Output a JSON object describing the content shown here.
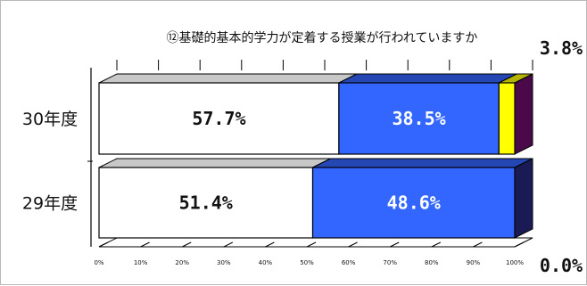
{
  "chart_data": {
    "type": "bar",
    "orientation": "horizontal",
    "stacked": "percent",
    "three_d": true,
    "title": "⑫基礎的基本的学力が定着する授業が行われていますか",
    "categories": [
      "30年度",
      "29年度"
    ],
    "series": [
      {
        "color": "#ffffff",
        "values": [
          57.7,
          51.4
        ],
        "labels": [
          "57.7%",
          "51.4%"
        ]
      },
      {
        "color": "#3366ff",
        "values": [
          38.5,
          48.6
        ],
        "labels": [
          "38.5%",
          "48.6%"
        ]
      },
      {
        "color": "#ffff00",
        "values": [
          3.8,
          0.0
        ],
        "labels": [
          "3.8%",
          "0.0%"
        ]
      }
    ],
    "xlim": [
      0,
      100
    ],
    "x_ticks": [
      "0%",
      "10%",
      "20%",
      "30%",
      "40%",
      "50%",
      "60%",
      "70%",
      "80%",
      "90%",
      "100%"
    ],
    "grid": false,
    "legend": "none"
  }
}
